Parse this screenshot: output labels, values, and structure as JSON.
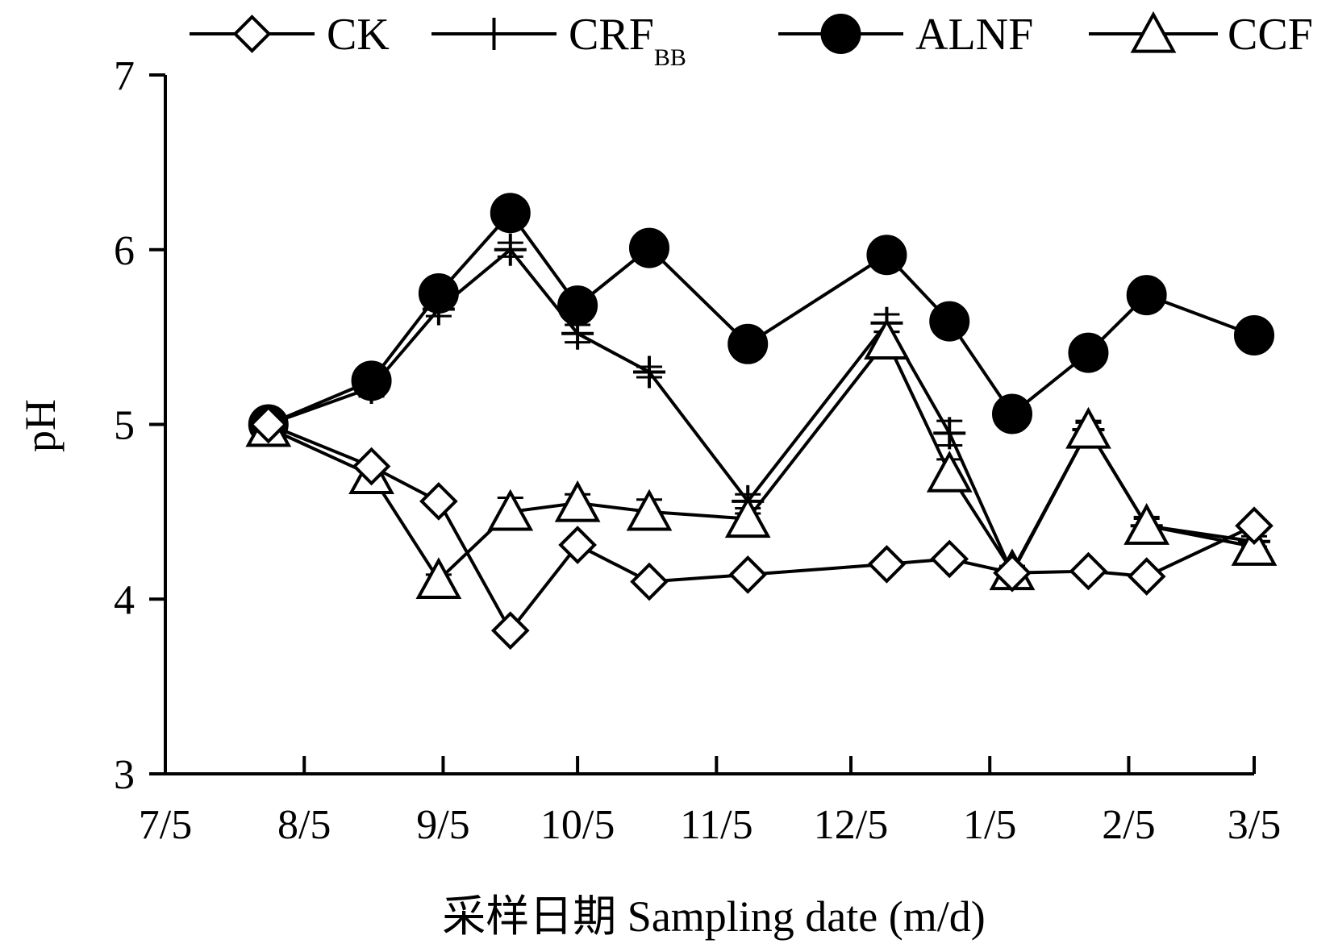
{
  "chart_data": {
    "type": "line",
    "xlabel": "采样日期 Sampling date (m/d)",
    "ylabel": "pH",
    "ylim": [
      3,
      7
    ],
    "yticks": [
      3,
      4,
      5,
      6,
      7
    ],
    "xlim": [
      "2016-07-05",
      "2017-03-05"
    ],
    "xtick_dates": [
      "2016-07-05",
      "2016-08-05",
      "2016-09-05",
      "2016-10-05",
      "2016-11-05",
      "2016-12-05",
      "2017-01-05",
      "2017-02-05",
      "2017-03-05"
    ],
    "xtick_labels": [
      "7/5",
      "8/5",
      "9/5",
      "10/5",
      "11/5",
      "12/5",
      "1/5",
      "2/5",
      "3/5"
    ],
    "grid": false,
    "legend_position": "top",
    "error_bars": true,
    "x": [
      "2016-07-28",
      "2016-08-20",
      "2016-09-04",
      "2016-09-20",
      "2016-10-05",
      "2016-10-21",
      "2016-11-12",
      "2016-12-13",
      "2016-12-27",
      "2017-01-10",
      "2017-01-27",
      "2017-02-09",
      "2017-03-05"
    ],
    "series": [
      {
        "name": "CK",
        "marker": "diamond-open",
        "values": [
          5.0,
          4.76,
          4.56,
          3.82,
          4.31,
          4.1,
          4.14,
          4.2,
          4.23,
          4.15,
          4.16,
          4.13,
          4.42
        ],
        "errors": [
          0.02,
          0.03,
          0.02,
          0.02,
          0.02,
          0.02,
          0.02,
          0.02,
          0.02,
          0.02,
          0.02,
          0.02,
          0.03
        ]
      },
      {
        "name": "CRF",
        "name_subscript": "BB",
        "marker": "plus",
        "values": [
          5.0,
          5.21,
          5.66,
          6.0,
          5.52,
          5.3,
          4.56,
          5.58,
          4.95,
          4.15,
          4.97,
          4.42,
          4.33
        ],
        "errors": [
          0.02,
          0.05,
          0.04,
          0.04,
          0.05,
          0.03,
          0.04,
          0.05,
          0.07,
          0.03,
          0.04,
          0.04,
          0.03
        ]
      },
      {
        "name": "ALNF",
        "marker": "circle-filled",
        "values": [
          5.0,
          5.25,
          5.75,
          6.21,
          5.68,
          6.01,
          5.46,
          5.97,
          5.59,
          5.06,
          5.41,
          5.74,
          5.51
        ],
        "errors": [
          0.02,
          0.03,
          0.03,
          0.03,
          0.03,
          0.07,
          0.03,
          0.03,
          0.03,
          0.03,
          0.03,
          0.03,
          0.03
        ]
      },
      {
        "name": "CCF",
        "marker": "triangle-open",
        "values": [
          4.98,
          4.71,
          4.11,
          4.5,
          4.55,
          4.5,
          4.46,
          5.48,
          4.72,
          4.16,
          4.97,
          4.42,
          4.3
        ],
        "errors": [
          0.02,
          0.03,
          0.03,
          0.08,
          0.05,
          0.07,
          0.03,
          0.05,
          0.08,
          0.03,
          0.05,
          0.05,
          0.03
        ]
      }
    ]
  }
}
